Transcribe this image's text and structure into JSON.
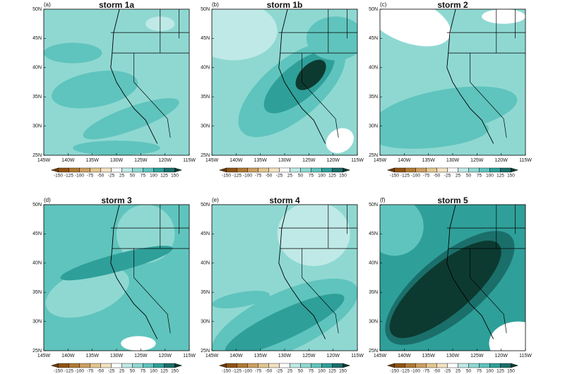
{
  "panels": [
    {
      "label": "(a)",
      "title": "storm 1a"
    },
    {
      "label": "(b)",
      "title": "storm 1b"
    },
    {
      "label": "(c)",
      "title": "storm 2"
    },
    {
      "label": "(d)",
      "title": "storm 3"
    },
    {
      "label": "(e)",
      "title": "storm 4"
    },
    {
      "label": "(f)",
      "title": "storm 5"
    }
  ],
  "lat_labels": [
    "25N",
    "30N",
    "35N",
    "40N",
    "45N",
    "50N"
  ],
  "lon_labels": [
    "145W",
    "140W",
    "135W",
    "130W",
    "125W",
    "120W",
    "115W"
  ],
  "colorbar": {
    "labels": [
      "-150",
      "-125",
      "-100",
      "-75",
      "-50",
      "-25",
      "25",
      "50",
      "75",
      "100",
      "125",
      "150"
    ],
    "colors": [
      "#6b3a0a",
      "#8f5415",
      "#b07a33",
      "#cc9f60",
      "#e2c690",
      "#f2e2c2",
      "#ffffff",
      "#bfe9e6",
      "#8fd8d2",
      "#5fc4bd",
      "#2f9f99",
      "#1b6f6b",
      "#0d3a30"
    ]
  }
}
